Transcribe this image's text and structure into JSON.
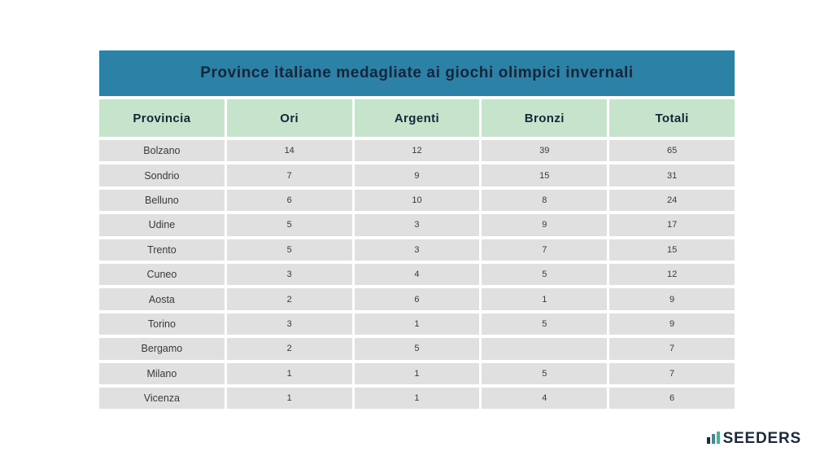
{
  "chart_data": {
    "type": "table",
    "title": "Province italiane medagliate ai giochi olimpici invernali",
    "columns": [
      "Provincia",
      "Ori",
      "Argenti",
      "Bronzi",
      "Totali"
    ],
    "rows": [
      [
        "Bolzano",
        14,
        12,
        39,
        65
      ],
      [
        "Sondrio",
        7,
        9,
        15,
        31
      ],
      [
        "Belluno",
        6,
        10,
        8,
        24
      ],
      [
        "Udine",
        5,
        3,
        9,
        17
      ],
      [
        "Trento",
        5,
        3,
        7,
        15
      ],
      [
        "Cuneo",
        3,
        4,
        5,
        12
      ],
      [
        "Aosta",
        2,
        6,
        1,
        9
      ],
      [
        "Torino",
        3,
        1,
        5,
        9
      ],
      [
        "Bergamo",
        2,
        5,
        "",
        7
      ],
      [
        "Milano",
        1,
        1,
        5,
        7
      ],
      [
        "Vicenza",
        1,
        1,
        4,
        6
      ]
    ],
    "layout": {
      "grid": false,
      "header_position": "top",
      "empty_cells": [
        [
          "Bergamo",
          "Bronzi"
        ]
      ]
    }
  },
  "colors": {
    "title_bg": "#2b81a6",
    "header_bg": "#c6e4cc",
    "row_bg": "#e0e0e0",
    "text_dark": "#15263b",
    "logo_navy": "#1b2a3b",
    "logo_teal": "#2f8fa0",
    "logo_green": "#55ae8e"
  },
  "logo": {
    "text": "SEEDERS"
  }
}
